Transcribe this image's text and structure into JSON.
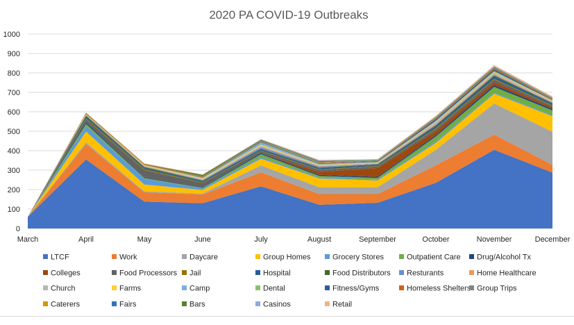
{
  "chart_data": {
    "type": "area",
    "stacked": true,
    "title": "2020 PA COVID-19 Outbreaks",
    "xlabel": "",
    "ylabel": "",
    "ylim": [
      0,
      1000
    ],
    "yticks": [
      0,
      100,
      200,
      300,
      400,
      500,
      600,
      700,
      800,
      900,
      1000
    ],
    "grid": true,
    "legend": "bottom",
    "categories": [
      "March",
      "April",
      "May",
      "June",
      "July",
      "August",
      "September",
      "October",
      "November",
      "December"
    ],
    "series": [
      {
        "name": "LTCF",
        "color": "#4472C4",
        "values": [
          60,
          355,
          138,
          130,
          217,
          122,
          132,
          235,
          405,
          287
        ]
      },
      {
        "name": "Work",
        "color": "#ED7D31",
        "values": [
          0,
          80,
          48,
          45,
          72,
          55,
          45,
          90,
          78,
          40
        ]
      },
      {
        "name": "Daycare",
        "color": "#A5A5A5",
        "values": [
          0,
          8,
          5,
          5,
          35,
          35,
          35,
          80,
          160,
          170
        ]
      },
      {
        "name": "Group Homes",
        "color": "#FFC000",
        "values": [
          0,
          55,
          35,
          18,
          35,
          45,
          35,
          35,
          50,
          80
        ]
      },
      {
        "name": "Grocery Stores",
        "color": "#5B9BD5",
        "values": [
          0,
          28,
          30,
          8,
          8,
          5,
          5,
          8,
          5,
          5
        ]
      },
      {
        "name": "Outpatient Care",
        "color": "#70AD47",
        "values": [
          0,
          12,
          3,
          3,
          15,
          8,
          8,
          25,
          30,
          25
        ]
      },
      {
        "name": "Drug/Alcohol Tx",
        "color": "#264478",
        "values": [
          0,
          8,
          3,
          3,
          6,
          6,
          6,
          8,
          10,
          8
        ]
      },
      {
        "name": "Colleges",
        "color": "#9E480E",
        "values": [
          0,
          0,
          0,
          0,
          0,
          15,
          45,
          20,
          15,
          8
        ]
      },
      {
        "name": "Food Processors",
        "color": "#636363",
        "values": [
          0,
          15,
          38,
          22,
          10,
          10,
          8,
          10,
          12,
          8
        ]
      },
      {
        "name": "Jail",
        "color": "#997300",
        "values": [
          0,
          5,
          5,
          3,
          3,
          3,
          3,
          5,
          5,
          3
        ]
      },
      {
        "name": "Hospital",
        "color": "#255E91",
        "values": [
          0,
          8,
          6,
          6,
          6,
          6,
          5,
          10,
          12,
          8
        ]
      },
      {
        "name": "Food Distributors",
        "color": "#43682B",
        "values": [
          0,
          6,
          5,
          3,
          3,
          3,
          3,
          5,
          5,
          3
        ]
      },
      {
        "name": "Resturants",
        "color": "#698ED0",
        "values": [
          0,
          2,
          2,
          3,
          8,
          5,
          3,
          3,
          3,
          2
        ]
      },
      {
        "name": "Home Healthcare",
        "color": "#F1975A",
        "values": [
          0,
          3,
          3,
          2,
          3,
          3,
          2,
          5,
          5,
          3
        ]
      },
      {
        "name": "Church",
        "color": "#B7B7B7",
        "values": [
          0,
          2,
          2,
          3,
          5,
          3,
          3,
          10,
          8,
          5
        ]
      },
      {
        "name": "Farms",
        "color": "#FFCD33",
        "values": [
          0,
          0,
          2,
          3,
          5,
          3,
          2,
          2,
          2,
          2
        ]
      },
      {
        "name": "Camp",
        "color": "#7CAFDD",
        "values": [
          0,
          0,
          0,
          2,
          10,
          3,
          0,
          0,
          0,
          0
        ]
      },
      {
        "name": "Dental",
        "color": "#8CC168",
        "values": [
          0,
          2,
          2,
          2,
          2,
          2,
          2,
          3,
          5,
          3
        ]
      },
      {
        "name": "Fitness/Gyms",
        "color": "#335AA1",
        "values": [
          0,
          0,
          0,
          2,
          3,
          3,
          3,
          8,
          8,
          3
        ]
      },
      {
        "name": "Homeless Shelters",
        "color": "#D26012",
        "values": [
          0,
          3,
          3,
          3,
          2,
          2,
          2,
          3,
          5,
          3
        ]
      },
      {
        "name": "Group Trips",
        "color": "#848484",
        "values": [
          0,
          0,
          0,
          2,
          3,
          2,
          2,
          2,
          2,
          2
        ]
      },
      {
        "name": "Caterers",
        "color": "#CC9A00",
        "values": [
          0,
          0,
          0,
          0,
          0,
          2,
          0,
          0,
          0,
          0
        ]
      },
      {
        "name": "Fairs",
        "color": "#2E75B6",
        "values": [
          0,
          0,
          0,
          0,
          0,
          3,
          0,
          0,
          0,
          0
        ]
      },
      {
        "name": "Bars",
        "color": "#548235",
        "values": [
          0,
          2,
          2,
          8,
          5,
          3,
          3,
          5,
          5,
          3
        ]
      },
      {
        "name": "Casinos",
        "color": "#8FAADC",
        "values": [
          0,
          0,
          0,
          0,
          2,
          3,
          2,
          3,
          5,
          3
        ]
      },
      {
        "name": "Retail",
        "color": "#F4B183",
        "values": [
          0,
          3,
          3,
          2,
          2,
          3,
          3,
          5,
          5,
          5
        ]
      }
    ]
  }
}
